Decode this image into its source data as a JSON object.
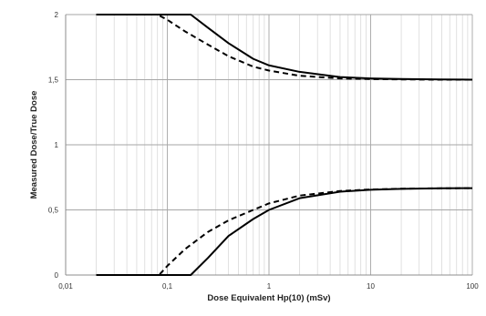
{
  "chart_data": {
    "type": "line",
    "title": "",
    "xlabel": "Dose Equivalent Hp(10) (mSv)",
    "ylabel": "Measured Dose/True Dose",
    "x_scale": "log",
    "xlim": [
      0.01,
      100
    ],
    "ylim": [
      0,
      2
    ],
    "grid": true,
    "legend": "none",
    "x_ticks": [
      "0,01",
      "0,1",
      "1",
      "10",
      "100"
    ],
    "y_ticks": [
      "0",
      "0,5",
      "1",
      "1,5",
      "2"
    ],
    "series": [
      {
        "style": "solid",
        "color": "#000000",
        "x": [
          0.02,
          0.05,
          0.1,
          0.17,
          0.25,
          0.4,
          0.7,
          1,
          2,
          5,
          10,
          20,
          50,
          100
        ],
        "y": [
          2.0,
          2.0,
          2.0,
          2.0,
          1.9,
          1.78,
          1.66,
          1.61,
          1.56,
          1.52,
          1.51,
          1.505,
          1.502,
          1.5
        ]
      },
      {
        "style": "dashed",
        "color": "#000000",
        "x": [
          0.02,
          0.05,
          0.08,
          0.1,
          0.15,
          0.25,
          0.4,
          0.7,
          1,
          2,
          5,
          10,
          20,
          50,
          100
        ],
        "y": [
          2.0,
          2.0,
          2.0,
          1.96,
          1.87,
          1.77,
          1.68,
          1.6,
          1.57,
          1.53,
          1.51,
          1.505,
          1.502,
          1.5,
          1.5
        ]
      },
      {
        "style": "solid",
        "color": "#000000",
        "x": [
          0.02,
          0.05,
          0.1,
          0.17,
          0.25,
          0.4,
          0.7,
          1,
          2,
          5,
          10,
          20,
          50,
          100
        ],
        "y": [
          0.0,
          0.0,
          0.0,
          0.0,
          0.13,
          0.3,
          0.43,
          0.5,
          0.59,
          0.64,
          0.655,
          0.662,
          0.666,
          0.667
        ]
      },
      {
        "style": "dashed",
        "color": "#000000",
        "x": [
          0.02,
          0.05,
          0.083,
          0.1,
          0.15,
          0.25,
          0.4,
          0.7,
          1,
          2,
          5,
          10,
          20,
          50,
          100
        ],
        "y": [
          0.0,
          0.0,
          0.0,
          0.07,
          0.2,
          0.33,
          0.42,
          0.5,
          0.55,
          0.61,
          0.645,
          0.657,
          0.663,
          0.666,
          0.667
        ]
      }
    ]
  }
}
